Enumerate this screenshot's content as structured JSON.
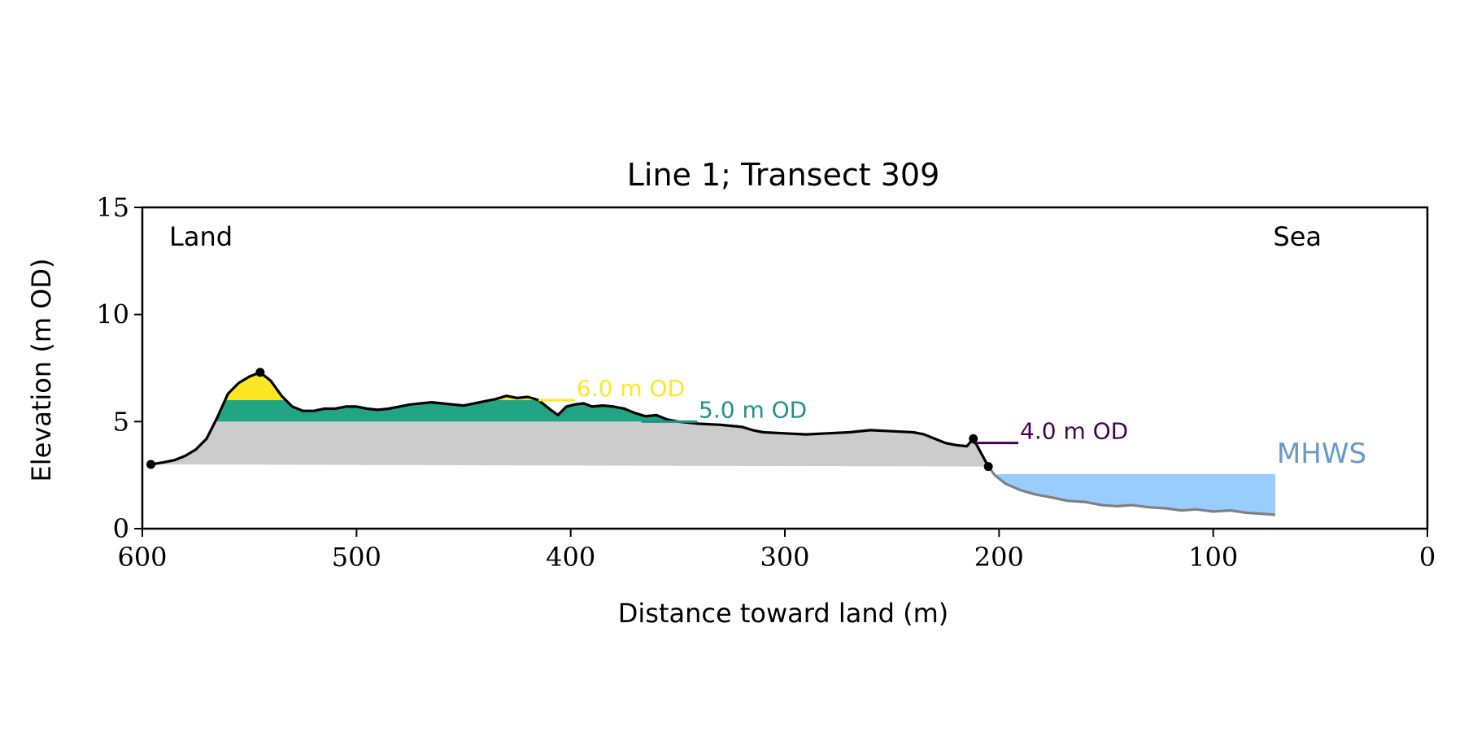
{
  "chart_data": {
    "type": "area",
    "title": "Line 1; Transect 309",
    "xlabel": "Distance toward land (m)",
    "ylabel": "Elevation (m OD)",
    "xlim": [
      600,
      0
    ],
    "ylim": [
      0,
      15
    ],
    "x_ticks": [
      600,
      500,
      400,
      300,
      200,
      100,
      0
    ],
    "y_ticks": [
      0,
      5,
      10,
      15
    ],
    "x_tick_labels": [
      "600",
      "500",
      "400",
      "300",
      "200",
      "100",
      "0"
    ],
    "y_tick_labels": [
      "0",
      "5",
      "10",
      "15"
    ],
    "corner_labels": {
      "left": "Land",
      "right": "Sea"
    },
    "colors": {
      "profile": "#000000",
      "seaward_profile": "#808080",
      "base_fill": "#cccccc",
      "above_5m_fill": "#21a585",
      "above_6m_fill": "#fde725",
      "mhws_fill": "#99ccff",
      "mhws_label": "#6699cc",
      "level_6": "#fde725",
      "level_5": "#21918c",
      "level_4": "#440154"
    },
    "base_line": [
      [
        596,
        3.0
      ],
      [
        205,
        2.9
      ]
    ],
    "profile": [
      [
        596,
        3.0
      ],
      [
        590,
        3.1
      ],
      [
        585,
        3.2
      ],
      [
        580,
        3.4
      ],
      [
        575,
        3.7
      ],
      [
        570,
        4.2
      ],
      [
        565,
        5.2
      ],
      [
        560,
        6.3
      ],
      [
        555,
        6.8
      ],
      [
        550,
        7.1
      ],
      [
        545,
        7.3
      ],
      [
        540,
        6.9
      ],
      [
        535,
        6.2
      ],
      [
        530,
        5.7
      ],
      [
        525,
        5.5
      ],
      [
        520,
        5.5
      ],
      [
        515,
        5.6
      ],
      [
        510,
        5.6
      ],
      [
        505,
        5.7
      ],
      [
        500,
        5.7
      ],
      [
        495,
        5.6
      ],
      [
        490,
        5.55
      ],
      [
        485,
        5.6
      ],
      [
        480,
        5.7
      ],
      [
        475,
        5.8
      ],
      [
        470,
        5.85
      ],
      [
        465,
        5.9
      ],
      [
        460,
        5.85
      ],
      [
        455,
        5.8
      ],
      [
        450,
        5.75
      ],
      [
        445,
        5.85
      ],
      [
        440,
        5.95
      ],
      [
        435,
        6.05
      ],
      [
        430,
        6.2
      ],
      [
        425,
        6.1
      ],
      [
        420,
        6.15
      ],
      [
        415,
        6.0
      ],
      [
        410,
        5.6
      ],
      [
        406,
        5.3
      ],
      [
        402,
        5.7
      ],
      [
        398,
        5.8
      ],
      [
        394,
        5.85
      ],
      [
        390,
        5.7
      ],
      [
        385,
        5.75
      ],
      [
        380,
        5.7
      ],
      [
        375,
        5.6
      ],
      [
        370,
        5.4
      ],
      [
        365,
        5.25
      ],
      [
        360,
        5.3
      ],
      [
        355,
        5.1
      ],
      [
        350,
        5.0
      ],
      [
        345,
        4.95
      ],
      [
        340,
        4.9
      ],
      [
        330,
        4.85
      ],
      [
        320,
        4.75
      ],
      [
        315,
        4.6
      ],
      [
        310,
        4.5
      ],
      [
        300,
        4.45
      ],
      [
        290,
        4.4
      ],
      [
        280,
        4.45
      ],
      [
        270,
        4.5
      ],
      [
        260,
        4.6
      ],
      [
        250,
        4.55
      ],
      [
        240,
        4.5
      ],
      [
        235,
        4.4
      ],
      [
        230,
        4.2
      ],
      [
        225,
        4.0
      ],
      [
        220,
        3.9
      ],
      [
        215,
        3.85
      ],
      [
        212,
        4.2
      ],
      [
        205,
        2.9
      ]
    ],
    "seaward_profile": [
      [
        205,
        2.9
      ],
      [
        202,
        2.5
      ],
      [
        197,
        2.1
      ],
      [
        190,
        1.8
      ],
      [
        183,
        1.6
      ],
      [
        175,
        1.45
      ],
      [
        168,
        1.3
      ],
      [
        160,
        1.25
      ],
      [
        152,
        1.1
      ],
      [
        145,
        1.05
      ],
      [
        138,
        1.1
      ],
      [
        130,
        1.0
      ],
      [
        122,
        0.95
      ],
      [
        115,
        0.85
      ],
      [
        108,
        0.9
      ],
      [
        100,
        0.8
      ],
      [
        92,
        0.85
      ],
      [
        85,
        0.75
      ],
      [
        78,
        0.7
      ],
      [
        71,
        0.65
      ]
    ],
    "markers": [
      [
        596,
        3.0
      ],
      [
        545,
        7.3
      ],
      [
        212,
        4.2
      ],
      [
        205,
        2.9
      ]
    ],
    "mhws": {
      "label": "MHWS",
      "level": 2.55,
      "x_start": 201,
      "x_end": 71
    },
    "levels": [
      {
        "label": "6.0 m OD",
        "value": 6.0,
        "line_from": 415,
        "line_to": 398
      },
      {
        "label": "5.0 m OD",
        "value": 5.0,
        "line_from": 367,
        "line_to": 341
      },
      {
        "label": "4.0 m OD",
        "value": 4.0,
        "line_from": 212,
        "line_to": 191
      }
    ]
  }
}
